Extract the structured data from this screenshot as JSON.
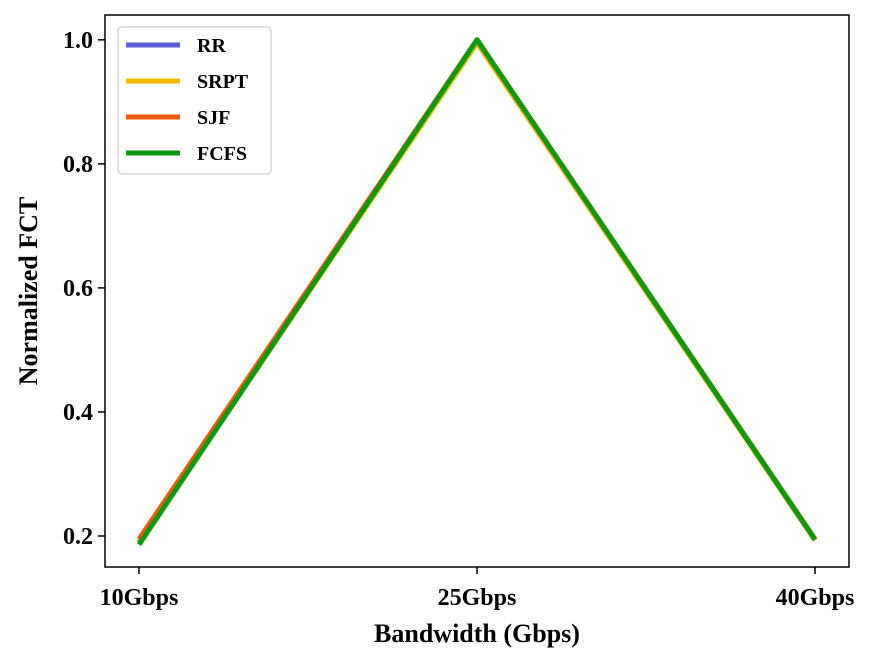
{
  "chart_data": {
    "type": "line",
    "categories": [
      "10Gbps",
      "25Gbps",
      "40Gbps"
    ],
    "xlabel": "Bandwidth (Gbps)",
    "ylabel": "Normalized FCT",
    "ylim": [
      0.15,
      1.04
    ],
    "yticks": [
      0.2,
      0.4,
      0.6,
      0.8,
      1.0
    ],
    "ytick_labels": [
      "0.2",
      "0.4",
      "0.6",
      "0.8",
      "1.0"
    ],
    "grid": false,
    "legend_position": "top-left",
    "series": [
      {
        "name": "RR",
        "color": "#5b5fd6",
        "values": [
          0.19,
          1.0,
          0.195
        ]
      },
      {
        "name": "SRPT",
        "color": "#f5b800",
        "values": [
          0.188,
          0.995,
          0.193
        ]
      },
      {
        "name": "SJF",
        "color": "#f05a0a",
        "values": [
          0.195,
          1.0,
          0.195
        ]
      },
      {
        "name": "FCFS",
        "color": "#0e9a0e",
        "values": [
          0.186,
          1.0,
          0.194
        ]
      }
    ]
  }
}
